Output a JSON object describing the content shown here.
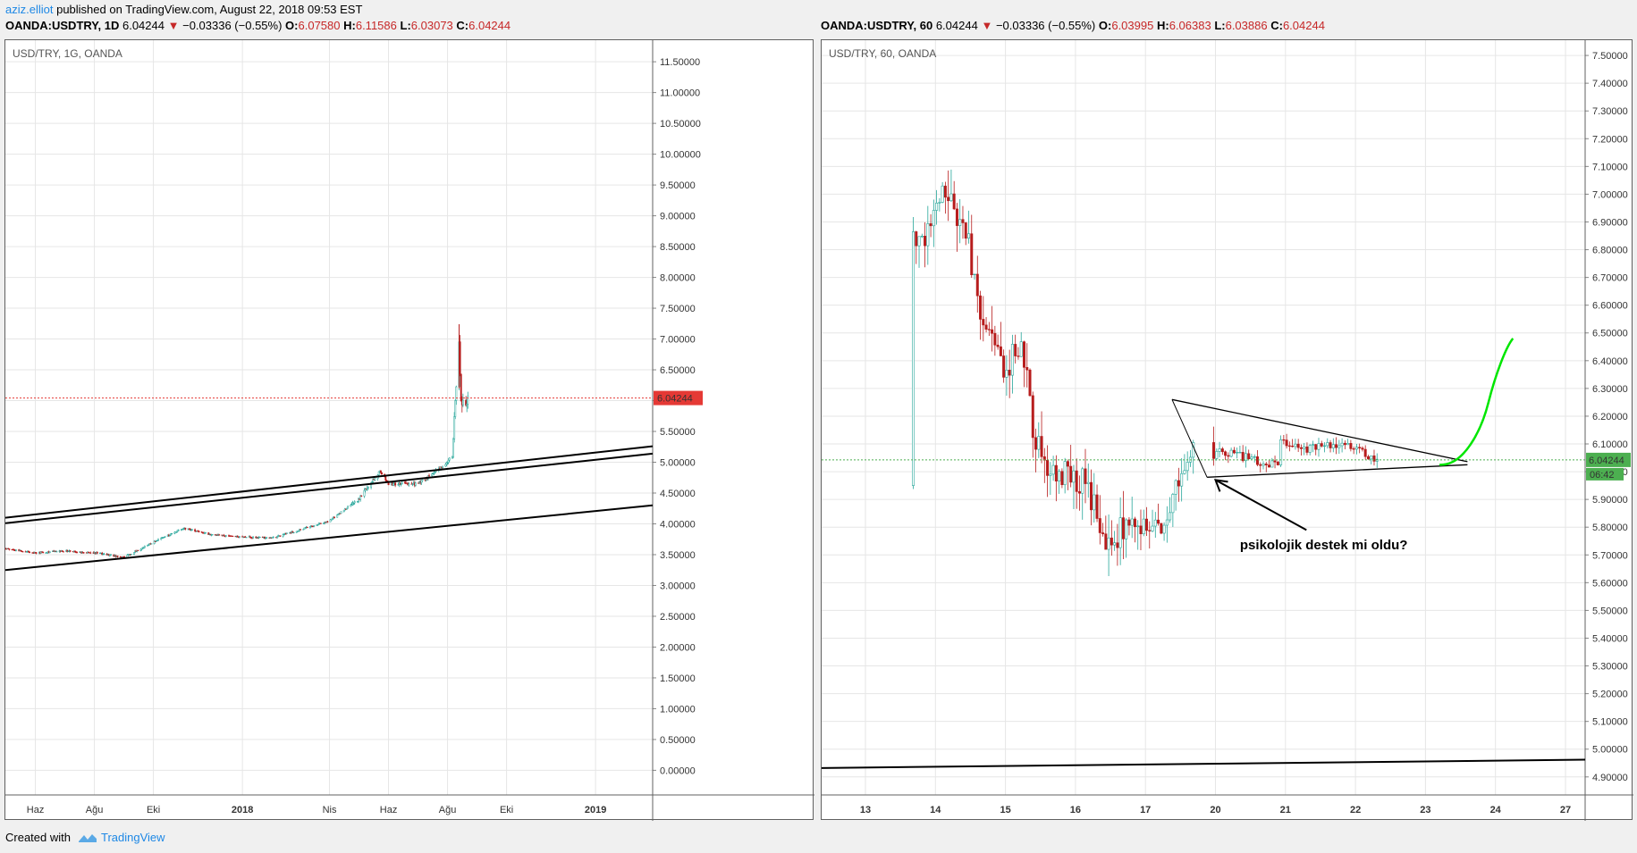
{
  "header": {
    "author": "aziz.elliot",
    "published_text": "published on TradingView.com, August 22, 2018 09:53 EST"
  },
  "left": {
    "symbol": "OANDA:USDTRY, 1D",
    "last": "6.04244",
    "arrow": "▼",
    "change": "−0.03336 (−0.55%)",
    "o_label": "O:",
    "o": "6.07580",
    "h_label": "H:",
    "h": "6.11586",
    "l_label": "L:",
    "l": "6.03073",
    "c_label": "C:",
    "c": "6.04244",
    "title": "USD/TRY, 1G, OANDA"
  },
  "right": {
    "symbol": "OANDA:USDTRY, 60",
    "last": "6.04244",
    "arrow": "▼",
    "change": "−0.03336 (−0.55%)",
    "o_label": "O:",
    "o": "6.03995",
    "h_label": "H:",
    "h": "6.06383",
    "l_label": "L:",
    "l": "6.03886",
    "c_label": "C:",
    "c": "6.04244",
    "title": "USD/TRY, 60, OANDA",
    "countdown": "06:42"
  },
  "annotation": "psikolojik destek mi oldu?",
  "footer": {
    "created_with": "Created with",
    "brand": "TradingView"
  },
  "colors": {
    "up": "#26a69a",
    "down": "#b71c1c",
    "price_tag": "#e53935",
    "price_tag_right": "#4caf50",
    "projection": "#00e600"
  },
  "chart_data": [
    {
      "type": "candlestick",
      "title": "USD/TRY, 1G, OANDA",
      "x_ticks": [
        "Haz",
        "Ağu",
        "Eki",
        "2018",
        "Nis",
        "Haz",
        "Ağu",
        "Eki",
        "2019"
      ],
      "y_ticks": [
        "11.50000",
        "11.00000",
        "10.50000",
        "10.00000",
        "9.50000",
        "9.00000",
        "8.50000",
        "8.00000",
        "7.50000",
        "7.00000",
        "6.50000",
        "6.00000",
        "5.50000",
        "5.00000",
        "4.50000",
        "4.00000",
        "3.50000",
        "3.00000",
        "2.50000",
        "2.00000",
        "1.50000",
        "1.00000",
        "0.50000",
        "0.00000"
      ],
      "ylim": [
        -0.4,
        11.85
      ],
      "last_price": "6.04244",
      "price_path": [
        {
          "date": "2017-05-01",
          "value": 3.6
        },
        {
          "date": "2017-06-01",
          "value": 3.53
        },
        {
          "date": "2017-07-01",
          "value": 3.56
        },
        {
          "date": "2017-08-01",
          "value": 3.53
        },
        {
          "date": "2017-09-01",
          "value": 3.46
        },
        {
          "date": "2017-10-01",
          "value": 3.7
        },
        {
          "date": "2017-11-01",
          "value": 3.93
        },
        {
          "date": "2017-12-01",
          "value": 3.82
        },
        {
          "date": "2018-01-01",
          "value": 3.79
        },
        {
          "date": "2018-02-01",
          "value": 3.77
        },
        {
          "date": "2018-03-01",
          "value": 3.9
        },
        {
          "date": "2018-04-01",
          "value": 4.05
        },
        {
          "date": "2018-05-01",
          "value": 4.4
        },
        {
          "date": "2018-05-23",
          "value": 4.85
        },
        {
          "date": "2018-06-01",
          "value": 4.65
        },
        {
          "date": "2018-07-01",
          "value": 4.65
        },
        {
          "date": "2018-07-25",
          "value": 4.9
        },
        {
          "date": "2018-08-06",
          "value": 5.1
        },
        {
          "date": "2018-08-10",
          "value": 6.2
        },
        {
          "date": "2018-08-13",
          "value": 7.0
        },
        {
          "date": "2018-08-15",
          "value": 5.95
        },
        {
          "date": "2018-08-22",
          "value": 6.04
        }
      ]
    },
    {
      "type": "candlestick",
      "title": "USD/TRY, 60, OANDA",
      "x_ticks": [
        "13",
        "14",
        "15",
        "16",
        "17",
        "20",
        "21",
        "22",
        "23",
        "24",
        "27"
      ],
      "y_ticks": [
        "7.50000",
        "7.40000",
        "7.30000",
        "7.20000",
        "7.10000",
        "7.00000",
        "6.90000",
        "6.80000",
        "6.70000",
        "6.60000",
        "6.50000",
        "6.40000",
        "6.30000",
        "6.20000",
        "6.10000",
        "6.00000",
        "5.90000",
        "5.80000",
        "5.70000",
        "5.60000",
        "5.50000",
        "5.40000",
        "5.30000",
        "5.20000",
        "5.10000",
        "5.00000",
        "4.90000"
      ],
      "ylim": [
        4.835,
        7.555
      ],
      "last_price": "6.04244",
      "price_path": [
        {
          "date": "2018-08-12 20:00",
          "value": 5.95
        },
        {
          "date": "2018-08-13 06:00",
          "value": 6.4
        },
        {
          "date": "2018-08-13 14:00",
          "value": 6.95
        },
        {
          "date": "2018-08-13 20:00",
          "value": 6.8
        },
        {
          "date": "2018-08-14 02:00",
          "value": 7.0
        },
        {
          "date": "2018-08-14 10:00",
          "value": 6.9
        },
        {
          "date": "2018-08-14 16:00",
          "value": 6.55
        },
        {
          "date": "2018-08-15 00:00",
          "value": 6.38
        },
        {
          "date": "2018-08-15 06:00",
          "value": 6.45
        },
        {
          "date": "2018-08-15 10:00",
          "value": 6.1
        },
        {
          "date": "2018-08-15 16:00",
          "value": 6.0
        },
        {
          "date": "2018-08-16 04:00",
          "value": 5.96
        },
        {
          "date": "2018-08-16 10:00",
          "value": 5.75
        },
        {
          "date": "2018-08-16 20:00",
          "value": 5.82
        },
        {
          "date": "2018-08-17 06:00",
          "value": 5.8
        },
        {
          "date": "2018-08-17 12:00",
          "value": 6.0
        },
        {
          "date": "2018-08-17 16:00",
          "value": 6.1
        },
        {
          "date": "2018-08-19 23:00",
          "value": 6.02
        },
        {
          "date": "2018-08-20 08:00",
          "value": 6.15
        },
        {
          "date": "2018-08-20 18:00",
          "value": 6.12
        },
        {
          "date": "2018-08-21 06:00",
          "value": 6.08
        },
        {
          "date": "2018-08-21 18:00",
          "value": 6.1
        },
        {
          "date": "2018-08-22 02:00",
          "value": 6.07
        },
        {
          "date": "2018-08-22 08:00",
          "value": 6.04
        }
      ]
    }
  ]
}
